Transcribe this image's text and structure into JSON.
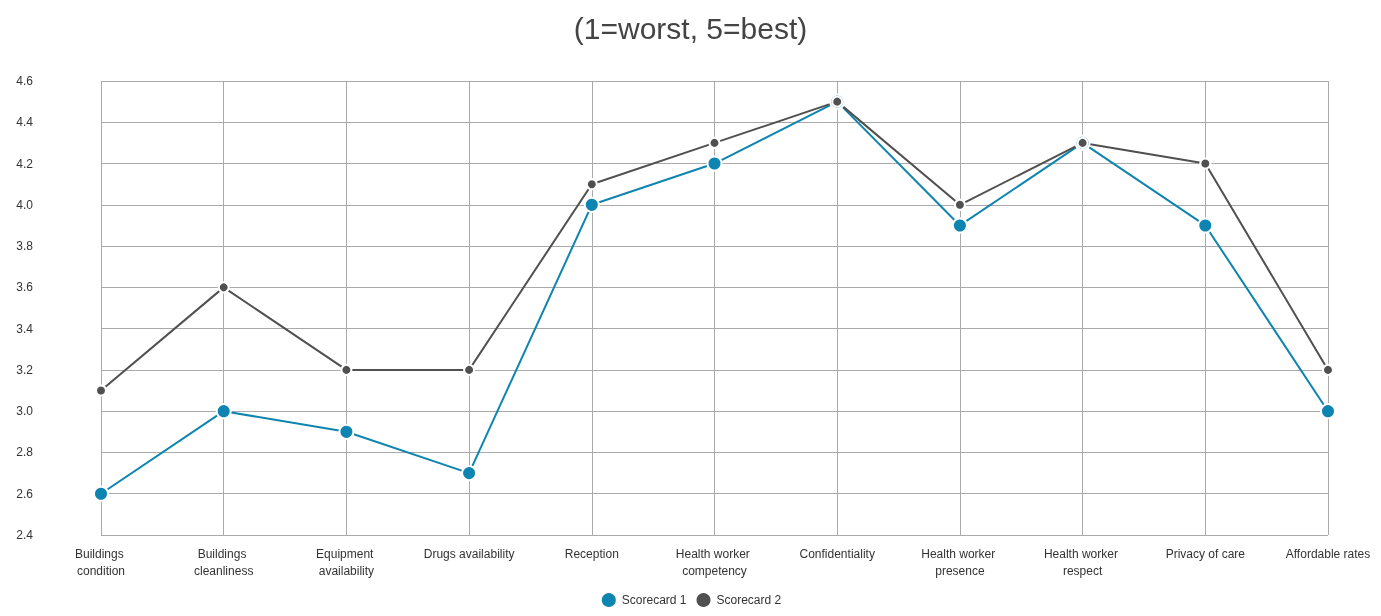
{
  "chart_data": {
    "type": "line",
    "title": "(1=worst, 5=best)",
    "categories": [
      "Buildings condition",
      "Buildings cleanliness",
      "Equipment availability",
      "Drugs availability",
      "Reception",
      "Health worker competency",
      "Confidentiality",
      "Health worker presence",
      "Health worker respect",
      "Privacy of care",
      "Affordable rates"
    ],
    "series": [
      {
        "name": "Scorecard 1",
        "color": "#0e84b0",
        "values": [
          2.6,
          3.0,
          2.9,
          2.7,
          4.0,
          4.2,
          4.5,
          3.9,
          4.3,
          3.9,
          3.0
        ]
      },
      {
        "name": "Scorecard 2",
        "color": "#505050",
        "values": [
          3.1,
          3.6,
          3.2,
          3.2,
          4.1,
          4.3,
          4.5,
          4.0,
          4.3,
          4.2,
          3.2
        ]
      }
    ],
    "ylim": [
      2.4,
      4.6
    ],
    "yticks": [
      2.4,
      2.6,
      2.8,
      {
        "value": 3,
        "label": "3.0"
      },
      3.2,
      3.4,
      3.6,
      3.8,
      {
        "value": 4,
        "label": "4.0"
      },
      4.2,
      4.4,
      4.6
    ],
    "grid": true,
    "legend": "bottom",
    "marker": "circle",
    "line_style": "solid"
  }
}
